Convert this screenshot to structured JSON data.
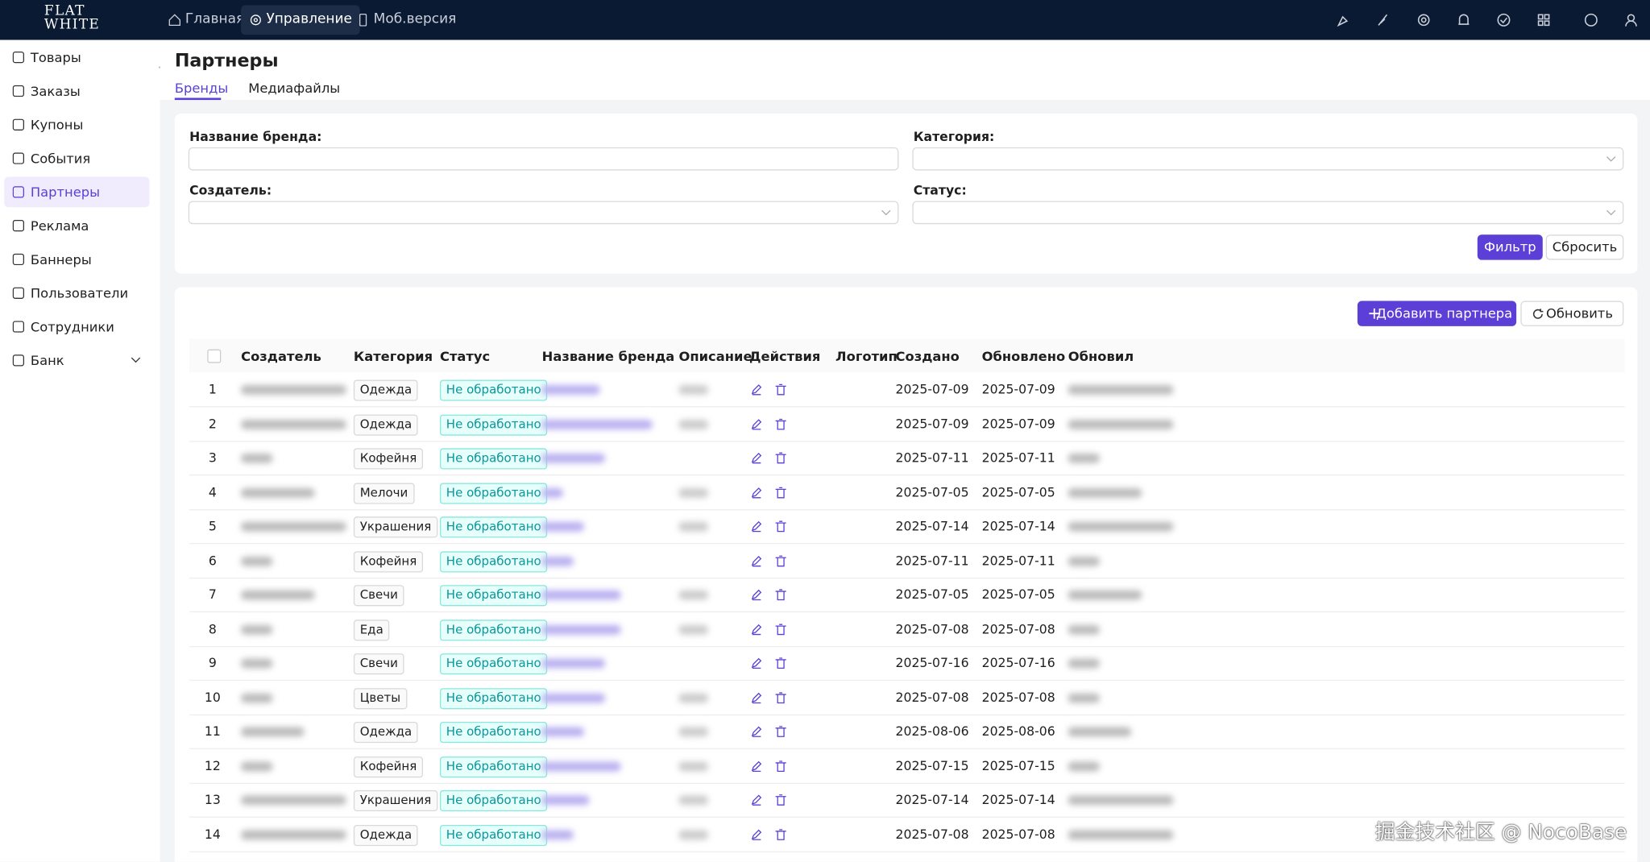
{
  "header": {
    "logo": [
      "FLAT",
      "WHITE"
    ],
    "nav": [
      "Главная",
      "Управление",
      "Моб.версия"
    ]
  },
  "sidebar": [
    "Товары",
    "Заказы",
    "Купоны",
    "События",
    "Партнеры",
    "Реклама",
    "Баннеры",
    "Пользователи",
    "Сотрудники",
    "Банк"
  ],
  "page": {
    "title": "Партнеры",
    "tabs": [
      "Бренды",
      "Медиафайлы"
    ]
  },
  "filter": {
    "fields": [
      "Название бренда:",
      "Категория:",
      "Создатель:",
      "Статус:"
    ],
    "buttons": [
      "Фильтр",
      "Сбросить"
    ]
  },
  "toolbar": [
    "Добавить партнера",
    "Обновить"
  ],
  "table": {
    "columns": [
      "Создатель",
      "Категория",
      "Статус",
      "Название бренда",
      "Описание",
      "Действия",
      "Логотип",
      "Создано",
      "Обновлено",
      "Обновил"
    ],
    "rows": [
      [
        "1",
        "Одежда",
        "Не обработано",
        "2025-07-09",
        "2025-07-09"
      ],
      [
        "2",
        "Одежда",
        "Не обработано",
        "2025-07-09",
        "2025-07-09"
      ],
      [
        "3",
        "Кофейня",
        "Не обработано",
        "2025-07-11",
        "2025-07-11"
      ],
      [
        "4",
        "Мелочи",
        "Не обработано",
        "2025-07-05",
        "2025-07-05"
      ],
      [
        "5",
        "Украшения",
        "Не обработано",
        "2025-07-14",
        "2025-07-14"
      ],
      [
        "6",
        "Кофейня",
        "Не обработано",
        "2025-07-11",
        "2025-07-11"
      ],
      [
        "7",
        "Свечи",
        "Не обработано",
        "2025-07-05",
        "2025-07-05"
      ],
      [
        "8",
        "Еда",
        "Не обработано",
        "2025-07-08",
        "2025-07-08"
      ],
      [
        "9",
        "Свечи",
        "Не обработано",
        "2025-07-16",
        "2025-07-16"
      ],
      [
        "10",
        "Цветы",
        "Не обработано",
        "2025-07-08",
        "2025-07-08"
      ],
      [
        "11",
        "Одежда",
        "Не обработано",
        "2025-08-06",
        "2025-08-06"
      ],
      [
        "12",
        "Кофейня",
        "Не обработано",
        "2025-07-15",
        "2025-07-15"
      ],
      [
        "13",
        "Украшения",
        "Не обработано",
        "2025-07-14",
        "2025-07-14"
      ],
      [
        "14",
        "Одежда",
        "Не обработано",
        "2025-07-08",
        "2025-07-08"
      ]
    ]
  },
  "watermark": "掘金技术社区 @ NocoBase"
}
